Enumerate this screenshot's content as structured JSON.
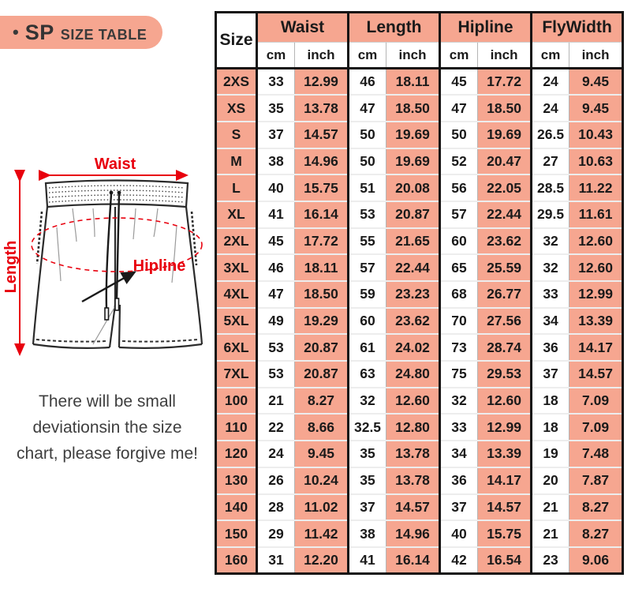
{
  "badge": {
    "bullet": "•",
    "title": "SP",
    "subtitle": "SIZE TABLE"
  },
  "diagram": {
    "waist_label": "Waist",
    "length_label": "Length",
    "hipline_label": "Hipline"
  },
  "note": {
    "line1": "There will be small",
    "line2": "deviationsin the size",
    "line3": "chart, please forgive me!"
  },
  "table": {
    "size_header": "Size",
    "groups": [
      {
        "label": "Waist"
      },
      {
        "label": "Length"
      },
      {
        "label": "Hipline"
      },
      {
        "label": "FlyWidth"
      }
    ],
    "units": {
      "cm": "cm",
      "inch": "inch"
    },
    "rows": [
      [
        "2XS",
        "33",
        "12.99",
        "46",
        "18.11",
        "45",
        "17.72",
        "24",
        "9.45"
      ],
      [
        "XS",
        "35",
        "13.78",
        "47",
        "18.50",
        "47",
        "18.50",
        "24",
        "9.45"
      ],
      [
        "S",
        "37",
        "14.57",
        "50",
        "19.69",
        "50",
        "19.69",
        "26.5",
        "10.43"
      ],
      [
        "M",
        "38",
        "14.96",
        "50",
        "19.69",
        "52",
        "20.47",
        "27",
        "10.63"
      ],
      [
        "L",
        "40",
        "15.75",
        "51",
        "20.08",
        "56",
        "22.05",
        "28.5",
        "11.22"
      ],
      [
        "XL",
        "41",
        "16.14",
        "53",
        "20.87",
        "57",
        "22.44",
        "29.5",
        "11.61"
      ],
      [
        "2XL",
        "45",
        "17.72",
        "55",
        "21.65",
        "60",
        "23.62",
        "32",
        "12.60"
      ],
      [
        "3XL",
        "46",
        "18.11",
        "57",
        "22.44",
        "65",
        "25.59",
        "32",
        "12.60"
      ],
      [
        "4XL",
        "47",
        "18.50",
        "59",
        "23.23",
        "68",
        "26.77",
        "33",
        "12.99"
      ],
      [
        "5XL",
        "49",
        "19.29",
        "60",
        "23.62",
        "70",
        "27.56",
        "34",
        "13.39"
      ],
      [
        "6XL",
        "53",
        "20.87",
        "61",
        "24.02",
        "73",
        "28.74",
        "36",
        "14.17"
      ],
      [
        "7XL",
        "53",
        "20.87",
        "63",
        "24.80",
        "75",
        "29.53",
        "37",
        "14.57"
      ],
      [
        "100",
        "21",
        "8.27",
        "32",
        "12.60",
        "32",
        "12.60",
        "18",
        "7.09"
      ],
      [
        "110",
        "22",
        "8.66",
        "32.5",
        "12.80",
        "33",
        "12.99",
        "18",
        "7.09"
      ],
      [
        "120",
        "24",
        "9.45",
        "35",
        "13.78",
        "34",
        "13.39",
        "19",
        "7.48"
      ],
      [
        "130",
        "26",
        "10.24",
        "35",
        "13.78",
        "36",
        "14.17",
        "20",
        "7.87"
      ],
      [
        "140",
        "28",
        "11.02",
        "37",
        "14.57",
        "37",
        "14.57",
        "21",
        "8.27"
      ],
      [
        "150",
        "29",
        "11.42",
        "38",
        "14.96",
        "40",
        "15.75",
        "21",
        "8.27"
      ],
      [
        "160",
        "31",
        "12.20",
        "41",
        "16.14",
        "42",
        "16.54",
        "23",
        "9.06"
      ]
    ]
  },
  "colors": {
    "accent-pink": "#f6a690",
    "border-black": "#141414",
    "annotation-red": "#e8000d",
    "text-dark": "#333333"
  }
}
